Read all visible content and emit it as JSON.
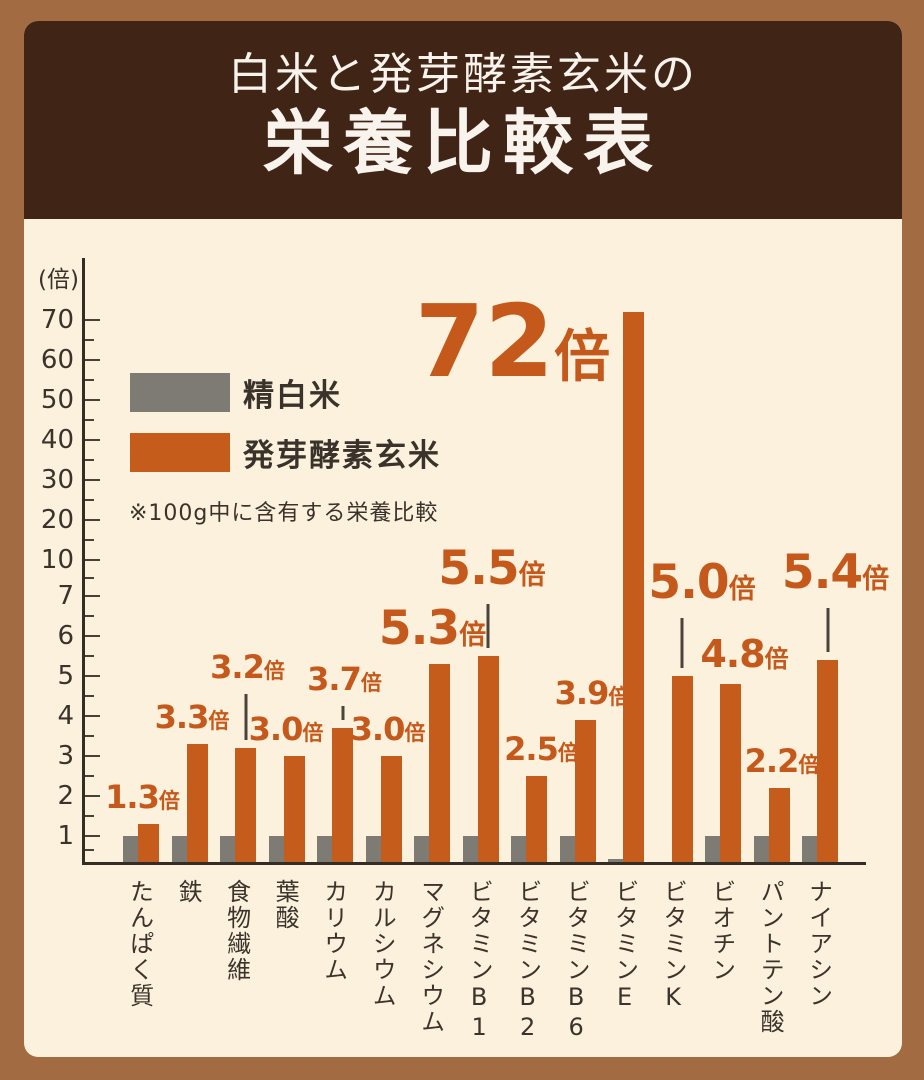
{
  "header": {
    "title_line1": "白米と発芽酵素玄米の",
    "title_line2": "栄養比較表"
  },
  "legend": {
    "items": [
      {
        "label": "精白米",
        "color": "#7e7b75"
      },
      {
        "label": "発芽酵素玄米",
        "color": "#c55c1c"
      }
    ],
    "note": "※100g中に含有する栄養比較"
  },
  "colors": {
    "page_background": "#a26b42",
    "header_background": "#402516",
    "panel_background": "#fcf1dd",
    "bar_orange": "#c55c1c",
    "bar_gray": "#7e7b75",
    "accent_text": "#c4591b",
    "dark_text": "#39332c"
  },
  "chart_data": {
    "type": "bar",
    "title": "白米と発芽酵素玄米の栄養比較表",
    "ylabel": "(倍)",
    "y_axis": {
      "unit": "倍",
      "major_ticks": [
        1,
        2,
        3,
        4,
        5,
        6,
        7,
        10,
        20,
        30,
        40,
        50,
        60,
        70
      ],
      "minor_ticks": [
        0.5,
        1.5,
        2.5,
        3.5,
        4.5,
        5.5,
        6.5,
        8.5,
        15,
        25,
        35,
        45,
        55,
        65
      ],
      "scale": "non-linear: 1-7 expanded, above 7 compressed",
      "range": [
        0,
        72
      ]
    },
    "categories": [
      "たんぱく質",
      "鉄",
      "食物繊維",
      "葉酸",
      "カリウム",
      "カルシウム",
      "マグネシウム",
      "ビタミンB1",
      "ビタミンB2",
      "ビタミンB6",
      "ビタミンE",
      "ビタミンK",
      "ビオチン",
      "パントテン酸",
      "ナイアシン"
    ],
    "series": [
      {
        "name": "精白米",
        "color": "#7e7b75",
        "values": [
          1,
          1,
          1,
          1,
          1,
          1,
          1,
          1,
          1,
          1,
          0.18,
          0.05,
          1,
          1,
          1
        ]
      },
      {
        "name": "発芽酵素玄米",
        "color": "#c55c1c",
        "values": [
          1.3,
          3.3,
          3.2,
          3.0,
          3.7,
          3.0,
          5.3,
          5.5,
          2.5,
          3.9,
          72,
          5.0,
          4.8,
          2.2,
          5.4
        ]
      }
    ],
    "bar_labels": [
      {
        "text": "1.3",
        "suffix": "倍",
        "size": "s",
        "dx": -6,
        "connector": 0
      },
      {
        "text": "3.3",
        "suffix": "倍",
        "size": "s",
        "dx": -5,
        "connector": 0
      },
      {
        "text": "3.2",
        "suffix": "倍",
        "size": "s",
        "dx": 2,
        "connector": 46
      },
      {
        "text": "3.0",
        "suffix": "倍",
        "size": "s",
        "dx": -8,
        "connector": 0
      },
      {
        "text": "3.7",
        "suffix": "倍",
        "size": "s",
        "dx": 2,
        "connector": 14
      },
      {
        "text": "3.0",
        "suffix": "倍",
        "size": "s",
        "dx": -3,
        "connector": 0
      },
      {
        "text": "5.3",
        "suffix": "倍",
        "size": "l",
        "dx": -7,
        "connector": 0
      },
      {
        "text": "5.5",
        "suffix": "倍",
        "size": "l",
        "dx": 4,
        "connector": 44
      },
      {
        "text": "2.5",
        "suffix": "倍",
        "size": "s",
        "dx": 5,
        "connector": 0
      },
      {
        "text": "3.9",
        "suffix": "倍",
        "size": "s",
        "dx": 7,
        "connector": 0
      },
      {
        "text": "72",
        "suffix": "倍",
        "size": "xl",
        "dx": -121,
        "connector": 0,
        "label_bottom": 400
      },
      {
        "text": "5.0",
        "suffix": "倍",
        "size": "l",
        "dx": 20,
        "connector": 50
      },
      {
        "text": "4.8",
        "suffix": "倍",
        "size": "m",
        "dx": 14,
        "connector": 0
      },
      {
        "text": "2.2",
        "suffix": "倍",
        "size": "s",
        "dx": 3,
        "connector": 0
      },
      {
        "text": "5.4",
        "suffix": "倍",
        "size": "l",
        "dx": 8,
        "connector": 44
      }
    ],
    "legend_position": "upper-left",
    "grid": false
  }
}
